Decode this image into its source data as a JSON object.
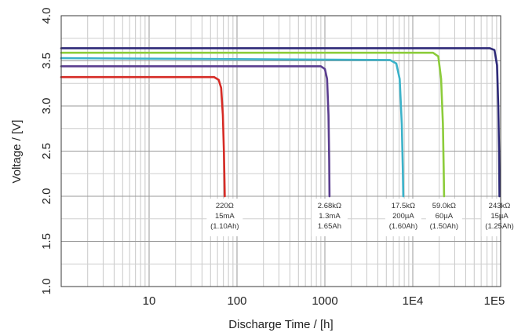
{
  "chart_data": {
    "type": "line",
    "xlabel": "Discharge Time / [h]",
    "ylabel": "Voltage / [V]",
    "x_scale": "log",
    "xlim": [
      1,
      100000
    ],
    "ylim": [
      1.0,
      4.0
    ],
    "grid": true,
    "x_tick_labels": [
      {
        "value": 10,
        "label": "10"
      },
      {
        "value": 100,
        "label": "100"
      },
      {
        "value": 1000,
        "label": "1000"
      },
      {
        "value": 10000,
        "label": "1E4"
      },
      {
        "value": 100000,
        "label": "1E5"
      }
    ],
    "y_tick_labels": [
      {
        "value": 1.0,
        "label": "1.0"
      },
      {
        "value": 1.5,
        "label": "1.5"
      },
      {
        "value": 2.0,
        "label": "2.0"
      },
      {
        "value": 2.5,
        "label": "2.5"
      },
      {
        "value": 3.0,
        "label": "3.0"
      },
      {
        "value": 3.5,
        "label": "3.5"
      },
      {
        "value": 4.0,
        "label": "4.0"
      }
    ],
    "series": [
      {
        "color": "#d62b25",
        "points": [
          [
            1,
            3.32
          ],
          [
            55,
            3.32
          ],
          [
            62,
            3.29
          ],
          [
            66,
            3.2
          ],
          [
            69,
            2.9
          ],
          [
            71,
            2.5
          ],
          [
            72,
            2.2
          ],
          [
            72.5,
            2.0
          ]
        ],
        "annotation": [
          "220Ω",
          "15mA",
          "(1.10Ah)"
        ]
      },
      {
        "color": "#5a3d8f",
        "points": [
          [
            1,
            3.44
          ],
          [
            900,
            3.44
          ],
          [
            1000,
            3.41
          ],
          [
            1060,
            3.3
          ],
          [
            1100,
            2.9
          ],
          [
            1120,
            2.4
          ],
          [
            1130,
            2.0
          ]
        ],
        "annotation": [
          "2.68kΩ",
          "1.3mA",
          "1.65Ah"
        ]
      },
      {
        "color": "#3bb2c9",
        "points": [
          [
            1,
            3.53
          ],
          [
            5500,
            3.51
          ],
          [
            6500,
            3.47
          ],
          [
            7100,
            3.3
          ],
          [
            7500,
            2.8
          ],
          [
            7700,
            2.3
          ],
          [
            7800,
            2.0
          ]
        ],
        "annotation": [
          "17.5kΩ",
          "200µA",
          "(1.60Ah)"
        ]
      },
      {
        "color": "#8ccc3a",
        "points": [
          [
            1,
            3.59
          ],
          [
            17000,
            3.59
          ],
          [
            19500,
            3.55
          ],
          [
            21000,
            3.3
          ],
          [
            22000,
            2.8
          ],
          [
            22500,
            2.3
          ],
          [
            22700,
            2.0
          ]
        ],
        "annotation": [
          "59.0kΩ",
          "60µA",
          "(1.50Ah)"
        ]
      },
      {
        "color": "#2e2a78",
        "points": [
          [
            1,
            3.64
          ],
          [
            75000,
            3.64
          ],
          [
            85000,
            3.62
          ],
          [
            91000,
            3.45
          ],
          [
            94000,
            3.0
          ],
          [
            96000,
            2.5
          ],
          [
            97000,
            2.0
          ]
        ],
        "annotation": [
          "243kΩ",
          "15µA",
          "(1.25Ah)"
        ]
      }
    ]
  }
}
